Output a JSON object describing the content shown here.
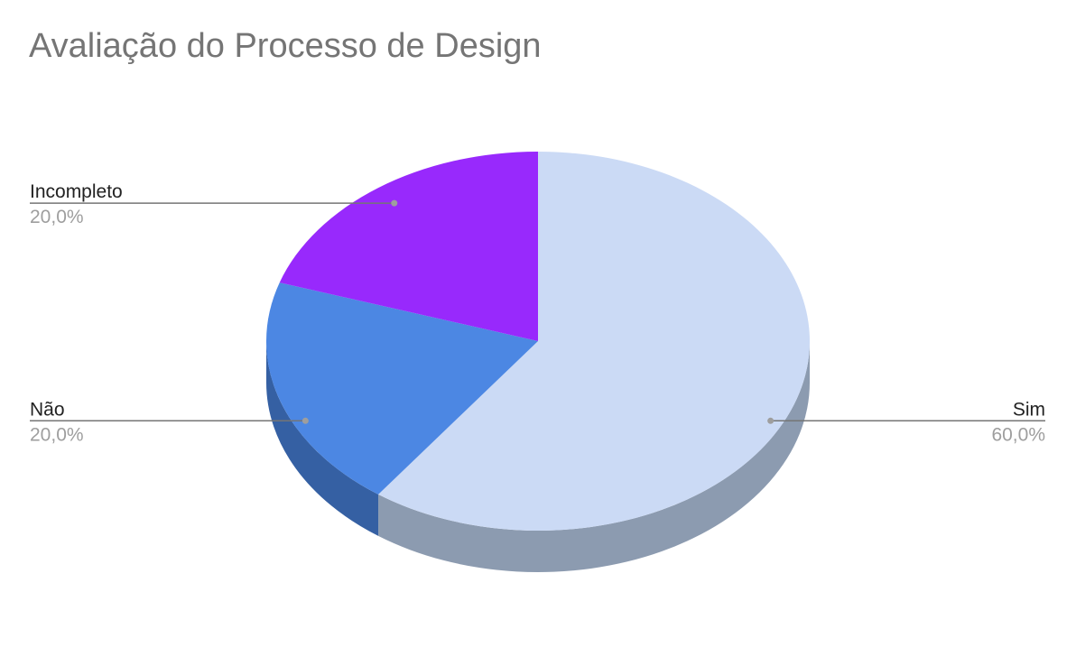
{
  "chart_data": {
    "type": "pie",
    "title": "Avaliação do Processo de Design",
    "slices": [
      {
        "label": "Sim",
        "value": 60.0,
        "display": "60,0%",
        "color": "#cbdaf5",
        "side_color": "#8c9bb0"
      },
      {
        "label": "Não",
        "value": 20.0,
        "display": "20,0%",
        "color": "#4c87e3",
        "side_color": "#3560a3"
      },
      {
        "label": "Incompleto",
        "value": 20.0,
        "display": "20,0%",
        "color": "#9829fc",
        "side_color": "#6a1db2"
      }
    ],
    "start_angle_deg": 0,
    "direction": "clockwise",
    "style": "3d",
    "legend": "none",
    "label_line_color": "#757575"
  }
}
